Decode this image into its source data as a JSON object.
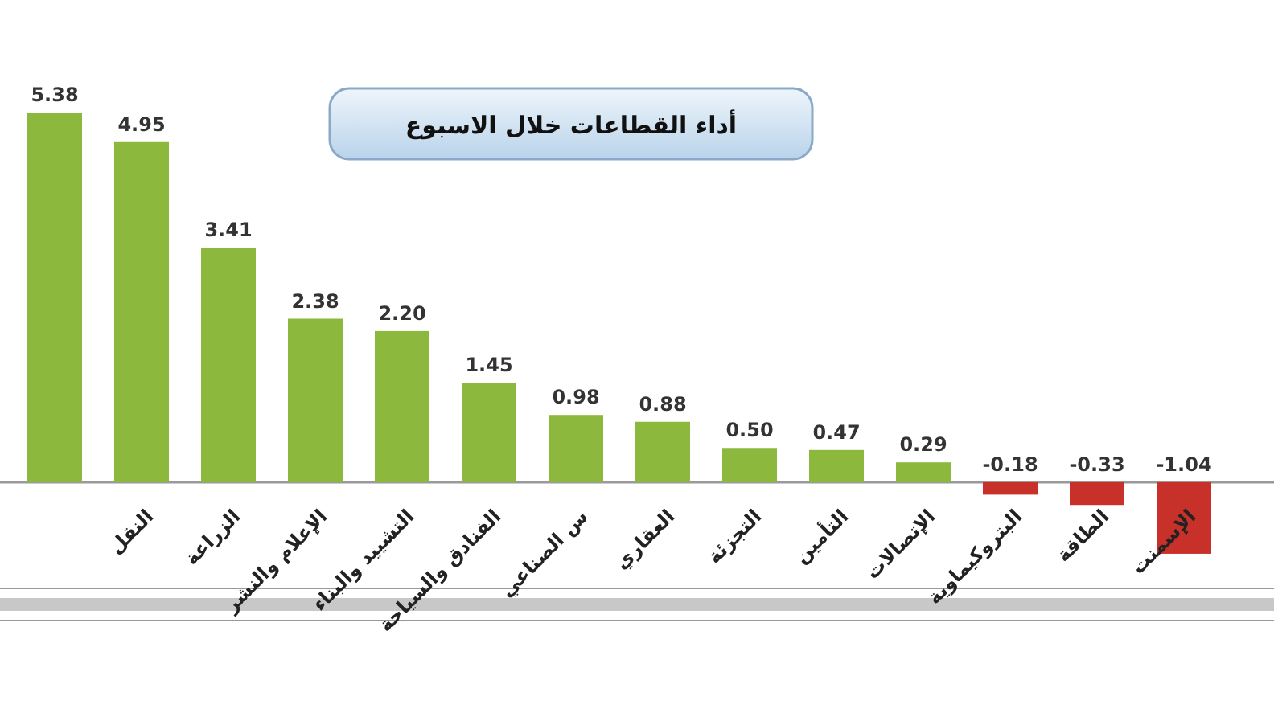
{
  "chart_data": {
    "type": "bar",
    "title": "أداء القطاعات خلال الاسبوع",
    "categories": [
      null,
      "النقل",
      "الزراعة",
      "الإعلام والنشر",
      "التشييد والبناء",
      "الفنادق والسياحة",
      "س الصناعي",
      "العقاري",
      "التجزئة",
      "التأمين",
      "الإتصالات",
      "البتروكيماوية",
      "الطاقة",
      "الإسمنت"
    ],
    "values": [
      5.38,
      4.95,
      3.41,
      2.38,
      2.2,
      1.45,
      0.98,
      0.88,
      0.5,
      0.47,
      0.29,
      -0.18,
      -0.33,
      -1.04
    ],
    "colors": [
      "#8db83e",
      "#8db83e",
      "#8db83e",
      "#8db83e",
      "#8db83e",
      "#8db83e",
      "#8db83e",
      "#8db83e",
      "#8db83e",
      "#8db83e",
      "#8db83e",
      "#c8302a",
      "#c8302a",
      "#c8302a"
    ],
    "value_labels": [
      "5.38",
      "4.95",
      "3.41",
      "2.38",
      "2.20",
      "1.45",
      "0.98",
      "0.88",
      "0.50",
      "0.47",
      "0.29",
      "-0.18",
      "-0.33",
      "-1.04"
    ]
  }
}
